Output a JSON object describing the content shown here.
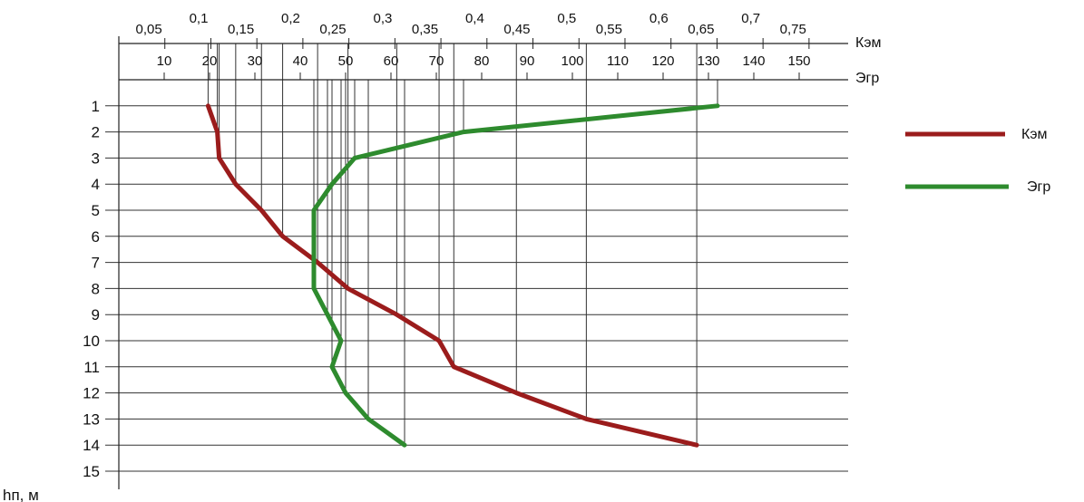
{
  "chart_data": {
    "type": "line",
    "orientation": "depth-profile",
    "x_axes": [
      {
        "name": "Кэм",
        "tick_labels": [
          "0,05",
          "0,1",
          "0,15",
          "0,2",
          "0,25",
          "0,3",
          "0,35",
          "0,4",
          "0,45",
          "0,5",
          "0,55",
          "0,6",
          "0,65",
          "0,7",
          "0,75"
        ],
        "range": [
          0,
          0.8
        ]
      },
      {
        "name": "Эгр",
        "tick_labels": [
          "10",
          "20",
          "30",
          "40",
          "50",
          "60",
          "70",
          "80",
          "90",
          "100",
          "110",
          "120",
          "130",
          "140",
          "150"
        ],
        "range": [
          0,
          160
        ]
      }
    ],
    "y_axis": {
      "label": "hп, м",
      "tick_labels": [
        "1",
        "2",
        "3",
        "4",
        "5",
        "6",
        "7",
        "8",
        "9",
        "10",
        "11",
        "12",
        "13",
        "14",
        "15"
      ],
      "range": [
        0,
        15
      ],
      "inverted": true
    },
    "grid": true,
    "legend_position": "right",
    "series": [
      {
        "name": "Кэм",
        "axis": "Кэм",
        "color": "#9b1c1c",
        "points": [
          {
            "y": 1,
            "x": 0.097
          },
          {
            "y": 2,
            "x": 0.107
          },
          {
            "y": 3,
            "x": 0.109
          },
          {
            "y": 4,
            "x": 0.127
          },
          {
            "y": 5,
            "x": 0.155
          },
          {
            "y": 6,
            "x": 0.178
          },
          {
            "y": 7,
            "x": 0.216
          },
          {
            "y": 8,
            "x": 0.249
          },
          {
            "y": 9,
            "x": 0.302
          },
          {
            "y": 10,
            "x": 0.348
          },
          {
            "y": 11,
            "x": 0.364
          },
          {
            "y": 12,
            "x": 0.432
          },
          {
            "y": 13,
            "x": 0.508
          },
          {
            "y": 14,
            "x": 0.628
          }
        ]
      },
      {
        "name": "Эгр",
        "axis": "Эгр",
        "color": "#2e8b2e",
        "points": [
          {
            "y": 1,
            "x": 132
          },
          {
            "y": 2,
            "x": 76
          },
          {
            "y": 3,
            "x": 52
          },
          {
            "y": 4,
            "x": 47
          },
          {
            "y": 5,
            "x": 43
          },
          {
            "y": 6,
            "x": 43
          },
          {
            "y": 7,
            "x": 43
          },
          {
            "y": 8,
            "x": 43
          },
          {
            "y": 9,
            "x": 46
          },
          {
            "y": 10,
            "x": 49
          },
          {
            "y": 11,
            "x": 47
          },
          {
            "y": 12,
            "x": 50
          },
          {
            "y": 13,
            "x": 55
          },
          {
            "y": 14,
            "x": 63
          }
        ]
      }
    ]
  }
}
